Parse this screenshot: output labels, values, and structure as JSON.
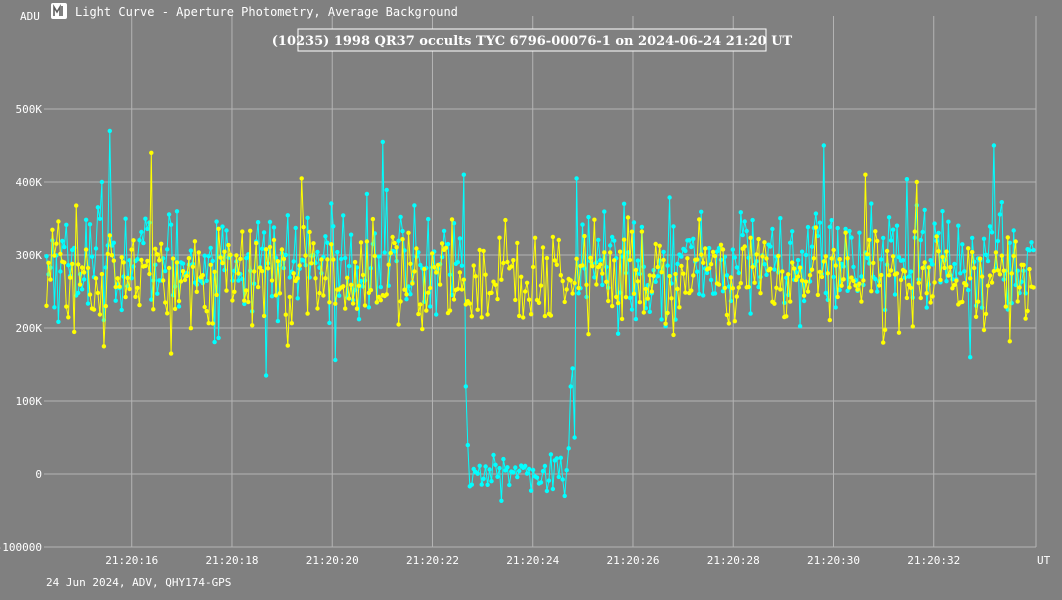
{
  "window": {
    "title": "Light Curve - Aperture Photometry, Average Background",
    "icon": "light-curve-app-icon"
  },
  "footer": {
    "text": "24 Jun 2024, ADV, QHY174-GPS"
  },
  "colors": {
    "background": "#808080",
    "grid": "#b4b4b4",
    "target": "#00ffff",
    "comparison": "#ffff00",
    "text": "#ffffff"
  },
  "chart_data": {
    "type": "line",
    "title": "(10235) 1998 QR37 occults TYC 6796-00076-1 on 2024-06-24  21:20 UT",
    "ylabel": "ADU",
    "xlabel": "UT",
    "xlim": [
      14.25,
      34.04
    ],
    "ylim": [
      -100000,
      600000
    ],
    "x_ticks": [
      16,
      18,
      20,
      22,
      24,
      26,
      28,
      30,
      32
    ],
    "x_tick_labels": [
      "21:20:16",
      "21:20:18",
      "21:20:20",
      "21:20:22",
      "21:20:24",
      "21:20:26",
      "21:20:28",
      "21:20:30",
      "21:20:32"
    ],
    "y_ticks": [
      -100000,
      0,
      100000,
      200000,
      300000,
      400000,
      500000
    ],
    "y_tick_labels": [
      "-100000",
      "0",
      "100K",
      "200K",
      "300K",
      "400K",
      "500K"
    ],
    "grid": true,
    "series": [
      {
        "color": "#00ffff",
        "samples": 500,
        "baseline": 290000,
        "scatter": 45000,
        "event": {
          "fall_start": 22.62,
          "fall_end": 22.72,
          "rise_start": 24.7,
          "rise_end": 24.85,
          "bottom": 0,
          "bottom_scatter": 12000
        },
        "highlights": [
          [
            15.58,
            470000
          ],
          [
            21.02,
            455000
          ],
          [
            22.62,
            410000
          ],
          [
            29.82,
            450000
          ],
          [
            33.2,
            450000
          ],
          [
            15.42,
            400000
          ],
          [
            24.86,
            405000
          ],
          [
            18.68,
            135000
          ],
          [
            32.72,
            160000
          ],
          [
            24.62,
            -30000
          ],
          [
            22.68,
            120000
          ],
          [
            24.85,
            50000
          ]
        ]
      },
      {
        "color": "#ffff00",
        "samples": 500,
        "baseline": 270000,
        "scatter": 40000,
        "highlights": [
          [
            16.38,
            440000
          ],
          [
            19.38,
            405000
          ],
          [
            30.62,
            410000
          ],
          [
            31.65,
            400000
          ],
          [
            15.45,
            175000
          ],
          [
            16.8,
            165000
          ],
          [
            31.0,
            180000
          ]
        ]
      }
    ]
  }
}
